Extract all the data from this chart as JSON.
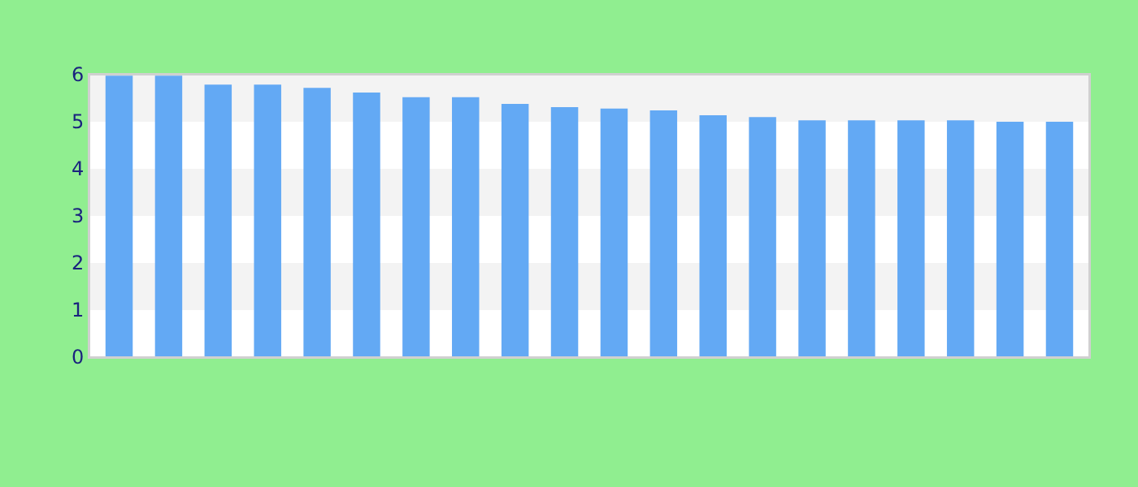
{
  "chart_data": {
    "type": "bar",
    "categories": [
      null,
      null,
      null,
      null,
      null,
      null,
      null,
      null,
      null,
      null,
      null,
      null,
      null,
      null,
      null,
      null,
      null,
      null,
      null,
      null
    ],
    "values": [
      5.98,
      5.98,
      5.79,
      5.79,
      5.72,
      5.62,
      5.52,
      5.52,
      5.38,
      5.31,
      5.28,
      5.24,
      5.14,
      5.1,
      5.03,
      5.03,
      5.03,
      5.03,
      5.0,
      5.0
    ],
    "color": "#63a9f4",
    "ylim": [
      0,
      6
    ],
    "yticks": [
      0,
      1,
      2,
      3,
      4,
      5,
      6
    ],
    "grid": false,
    "bands": [
      {
        "axis": "y",
        "from": 1,
        "to": 2,
        "color": "#f3f3f3"
      },
      {
        "axis": "y",
        "from": 3,
        "to": 4,
        "color": "#f3f3f3"
      },
      {
        "axis": "y",
        "from": 5,
        "to": 6,
        "color": "#f3f3f3"
      }
    ]
  }
}
